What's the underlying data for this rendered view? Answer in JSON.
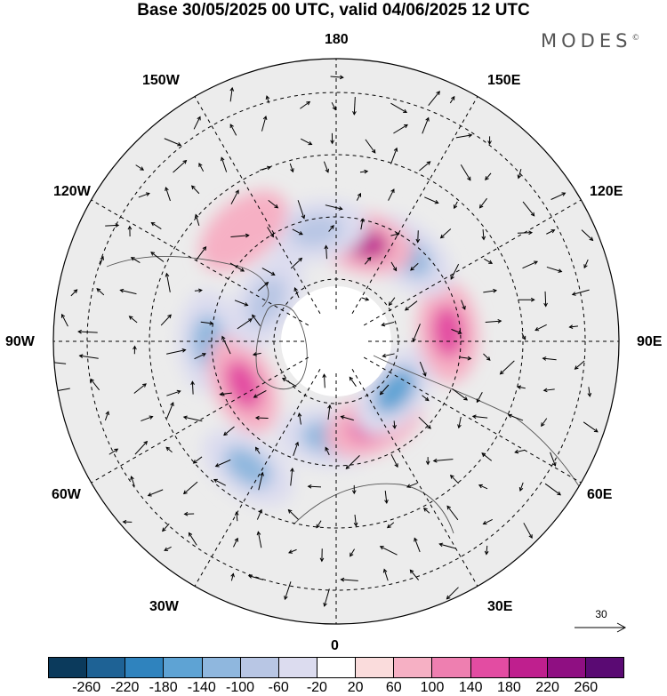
{
  "title": "Base 30/05/2025 00 UTC, valid 04/06/2025 12 UTC",
  "brand": {
    "text": "MODES",
    "mark": "©"
  },
  "longitude_labels": {
    "top": "180",
    "bottom": "0",
    "left": "90W",
    "right": "90E",
    "upper_left": "150W",
    "upper_left2": "120W",
    "upper_right": "150E",
    "upper_right2": "120E",
    "lower_left": "60W",
    "lower_left2": "30W",
    "lower_right": "60E",
    "lower_right2": "30E"
  },
  "reference_vector": {
    "value": "30"
  },
  "colorbar": {
    "colors": [
      "#0b3a5c",
      "#1e6295",
      "#2f83be",
      "#5ea3d4",
      "#8fb7de",
      "#b8c6e4",
      "#dcdcef",
      "#ffffff",
      "#fadcdc",
      "#f6b0c4",
      "#ee7fb0",
      "#e34ca2",
      "#bf1f8e",
      "#8f0f82",
      "#5a0a73"
    ],
    "ticks": [
      "-260",
      "-220",
      "-180",
      "-140",
      "-100",
      "-60",
      "-20",
      "20",
      "60",
      "100",
      "140",
      "180",
      "220",
      "260"
    ]
  },
  "anomaly_centres": [
    {
      "lon_deg": -90,
      "lat_deg": 50,
      "value": -140
    },
    {
      "lon_deg": -65,
      "lat_deg": 58,
      "value": 150
    },
    {
      "lon_deg": -35,
      "lat_deg": 42,
      "value": -140
    },
    {
      "lon_deg": -5,
      "lat_deg": 60,
      "value": -140
    },
    {
      "lon_deg": 25,
      "lat_deg": 62,
      "value": 150
    },
    {
      "lon_deg": 50,
      "lat_deg": 66,
      "value": -160
    },
    {
      "lon_deg": 95,
      "lat_deg": 55,
      "value": 140
    },
    {
      "lon_deg": 140,
      "lat_deg": 55,
      "value": -120
    },
    {
      "lon_deg": 165,
      "lat_deg": 58,
      "value": 180
    },
    {
      "lon_deg": -170,
      "lat_deg": 55,
      "value": -100
    },
    {
      "lon_deg": -140,
      "lat_deg": 45,
      "value": 80
    },
    {
      "lon_deg": -120,
      "lat_deg": 65,
      "value": -80
    }
  ]
}
